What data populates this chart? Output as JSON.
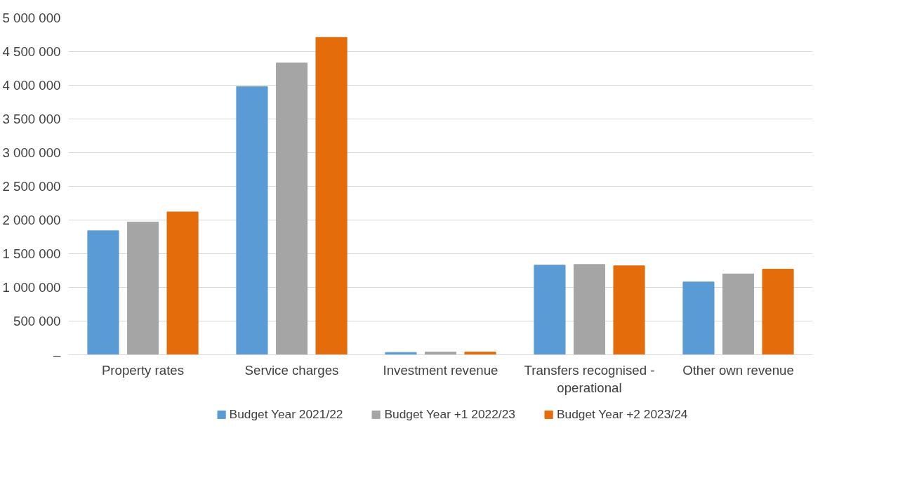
{
  "chart_data": {
    "type": "bar",
    "categories": [
      "Property rates",
      "Service charges",
      "Investment revenue",
      "Transfers recognised - operational",
      "Other own revenue"
    ],
    "series": [
      {
        "name": "Budget Year 2021/22",
        "color": "#5b9bd5",
        "values": [
          1840000,
          3980000,
          35000,
          1330000,
          1080000
        ]
      },
      {
        "name": "Budget Year +1 2022/23",
        "color": "#a5a5a5",
        "values": [
          1970000,
          4330000,
          40000,
          1340000,
          1200000
        ]
      },
      {
        "name": "Budget Year +2 2023/24",
        "color": "#e46c0a",
        "values": [
          2120000,
          4710000,
          40000,
          1320000,
          1270000
        ]
      }
    ],
    "ylim": [
      0,
      5000000
    ],
    "yticks": [
      {
        "value": 0,
        "label": "–"
      },
      {
        "value": 500000,
        "label": "500 000"
      },
      {
        "value": 1000000,
        "label": "1 000 000"
      },
      {
        "value": 1500000,
        "label": "1 500 000"
      },
      {
        "value": 2000000,
        "label": "2 000 000"
      },
      {
        "value": 2500000,
        "label": "2 500 000"
      },
      {
        "value": 3000000,
        "label": "3 000 000"
      },
      {
        "value": 3500000,
        "label": "3 500 000"
      },
      {
        "value": 4000000,
        "label": "4 000 000"
      },
      {
        "value": 4500000,
        "label": "4 500 000"
      },
      {
        "value": 5000000,
        "label": "5 000 000"
      }
    ],
    "grid": "y",
    "legend": "bottom"
  }
}
